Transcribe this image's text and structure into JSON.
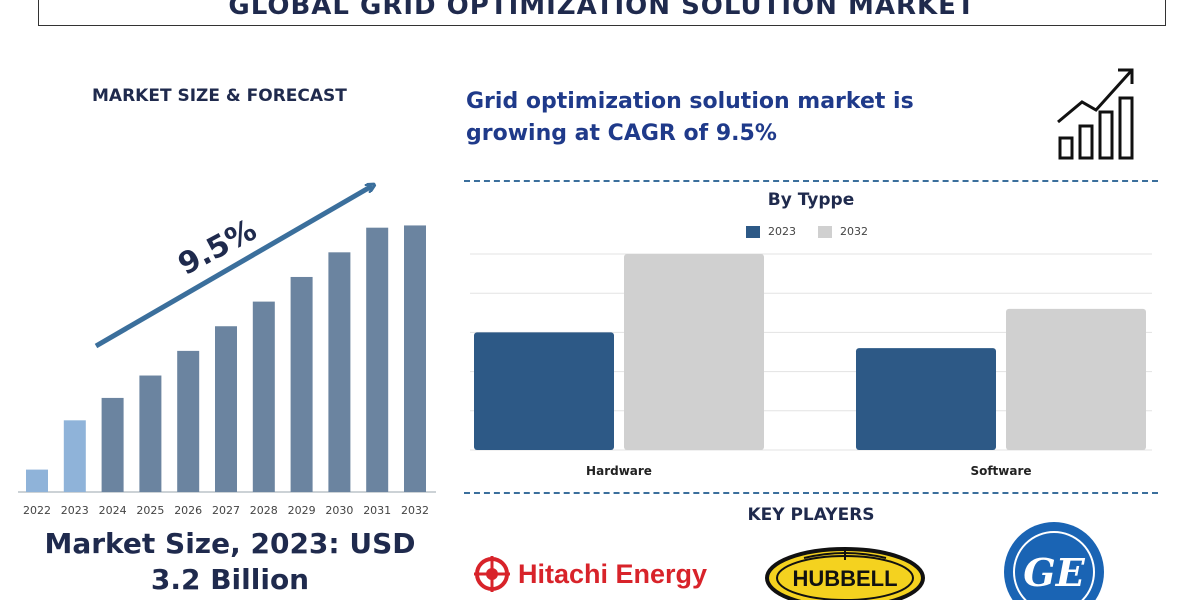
{
  "title": "GLOBAL GRID OPTIMIZATION SOLUTION MARKET",
  "left_panel": {
    "heading": "MARKET SIZE & FORECAST",
    "market_size_line1": "Market Size, 2023: USD",
    "market_size_line2": "3.2 Billion"
  },
  "headline": {
    "line1": "Grid optimization solution market is",
    "line2": "growing at CAGR of 9.5%"
  },
  "icons": {
    "trend": "growth-bar-chart-arrow-icon"
  },
  "chart_data": [
    {
      "type": "bar",
      "categories": [
        "2022",
        "2023",
        "2024",
        "2025",
        "2026",
        "2027",
        "2028",
        "2029",
        "2030",
        "2031",
        "2032"
      ],
      "values": [
        1.0,
        3.2,
        4.2,
        5.2,
        6.3,
        7.4,
        8.5,
        9.6,
        10.7,
        11.8,
        11.9
      ],
      "value_scale": "relative (unlabeled axis)",
      "annotation": "9.5%",
      "colors": {
        "highlight_2022_2023": "#8fb3d9",
        "forecast": "#6b84a0"
      },
      "ylim": [
        0,
        12.5
      ],
      "grid": false
    },
    {
      "type": "bar",
      "title": "By Typpe",
      "categories": [
        "Hardware",
        "Software"
      ],
      "series": [
        {
          "name": "2023",
          "values": [
            3.0,
            2.6
          ],
          "color": "#2d5986"
        },
        {
          "name": "2032",
          "values": [
            5.0,
            3.6
          ],
          "color": "#d0d0d0"
        }
      ],
      "ylim": [
        0,
        5
      ],
      "grid": true,
      "legend": "top-center"
    }
  ],
  "key_players": {
    "heading": "KEY PLAYERS",
    "items": [
      {
        "name": "Hitachi Energy",
        "color": "#d8232a"
      },
      {
        "name": "HUBBELL",
        "color": "#111111"
      },
      {
        "name": "GE",
        "color": "#1a64b4"
      }
    ]
  },
  "colors": {
    "navy": "#1f2a4d",
    "accent_blue": "#3b6f9c"
  }
}
